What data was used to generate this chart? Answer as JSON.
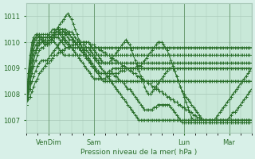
{
  "title": "",
  "xlabel": "Pression niveau de la mer( hPa )",
  "ylabel": "",
  "bg_color": "#d8f0e8",
  "plot_bg_color": "#c8e8d8",
  "line_color": "#2a6e2a",
  "grid_color": "#a8c8b8",
  "tick_label_color": "#2a6e2a",
  "ylim": [
    1006.5,
    1011.5
  ],
  "xlim": [
    0,
    120
  ],
  "yticks": [
    1007,
    1008,
    1009,
    1010,
    1011
  ],
  "xtick_labels": [
    "VenDim",
    "Sam",
    "Lun",
    "Mar"
  ],
  "xtick_positions": [
    12,
    36,
    84,
    108
  ],
  "num_steps": 121,
  "series": [
    [
      1007.6,
      1007.8,
      1007.9,
      1008.1,
      1008.3,
      1008.5,
      1008.6,
      1008.8,
      1008.9,
      1009.0,
      1009.1,
      1009.2,
      1009.2,
      1009.3,
      1009.4,
      1009.5,
      1009.5,
      1009.6,
      1009.6,
      1009.7,
      1009.7,
      1009.8,
      1009.8,
      1009.8,
      1009.9,
      1009.9,
      1009.9,
      1010.0,
      1010.0,
      1010.0,
      1010.0,
      1010.0,
      1010.0,
      1010.0,
      1009.9,
      1009.9,
      1009.9,
      1009.8,
      1009.8,
      1009.7,
      1009.7,
      1009.6,
      1009.6,
      1009.5,
      1009.5,
      1009.4,
      1009.4,
      1009.3,
      1009.3,
      1009.2,
      1009.2,
      1009.1,
      1009.1,
      1009.0,
      1009.0,
      1008.9,
      1008.9,
      1008.8,
      1008.8,
      1008.7,
      1008.7,
      1008.6,
      1008.6,
      1008.5,
      1008.5,
      1008.4,
      1008.4,
      1008.3,
      1008.3,
      1008.2,
      1008.2,
      1008.1,
      1008.1,
      1008.0,
      1008.0,
      1007.9,
      1007.9,
      1007.8,
      1007.8,
      1007.7,
      1007.7,
      1007.6,
      1007.6,
      1007.5,
      1007.5,
      1007.4,
      1007.4,
      1007.3,
      1007.3,
      1007.2,
      1007.2,
      1007.1,
      1007.1,
      1007.0,
      1007.0,
      1007.0,
      1007.0,
      1007.0,
      1007.0,
      1007.0,
      1007.0,
      1007.0,
      1007.0,
      1007.0,
      1007.0,
      1007.0,
      1007.0,
      1007.0,
      1007.1,
      1007.2,
      1007.3,
      1007.3,
      1007.4,
      1007.5,
      1007.6,
      1007.7,
      1007.8,
      1007.9,
      1008.0,
      1008.1,
      1008.2,
      1008.3,
      1008.4,
      1008.5,
      1008.6,
      1008.7
    ],
    [
      1007.6,
      1007.9,
      1008.2,
      1008.5,
      1008.7,
      1008.9,
      1009.1,
      1009.2,
      1009.3,
      1009.3,
      1009.3,
      1009.3,
      1009.4,
      1009.5,
      1009.6,
      1009.7,
      1009.8,
      1009.9,
      1010.0,
      1010.1,
      1010.2,
      1010.3,
      1010.4,
      1010.4,
      1010.4,
      1010.3,
      1010.2,
      1010.1,
      1010.0,
      1009.9,
      1009.8,
      1009.7,
      1009.7,
      1009.6,
      1009.5,
      1009.5,
      1009.4,
      1009.3,
      1009.2,
      1009.1,
      1009.0,
      1008.9,
      1008.8,
      1008.7,
      1008.6,
      1008.5,
      1008.4,
      1008.3,
      1008.2,
      1008.1,
      1008.0,
      1007.9,
      1007.8,
      1007.7,
      1007.6,
      1007.5,
      1007.4,
      1007.3,
      1007.2,
      1007.1,
      1007.0,
      1007.0,
      1007.0,
      1007.0,
      1007.0,
      1007.0,
      1007.0,
      1007.0,
      1007.0,
      1007.0,
      1007.0,
      1007.0,
      1007.0,
      1007.0,
      1007.0,
      1007.0,
      1007.0,
      1007.0,
      1007.0,
      1007.0,
      1007.0,
      1007.0,
      1007.0,
      1007.0,
      1007.0,
      1007.0,
      1007.0,
      1007.0,
      1007.0,
      1007.0,
      1007.0,
      1007.0,
      1007.0,
      1007.0,
      1007.0,
      1007.0,
      1007.0,
      1007.0,
      1007.0,
      1007.0,
      1007.0,
      1007.0,
      1007.0,
      1007.0,
      1007.0,
      1007.0,
      1007.0,
      1007.0,
      1007.0,
      1007.0,
      1007.0,
      1007.0,
      1007.0,
      1007.0,
      1007.0,
      1007.0,
      1007.0,
      1007.0,
      1007.0,
      1007.0,
      1007.0
    ],
    [
      1007.6,
      1008.0,
      1008.4,
      1008.8,
      1009.1,
      1009.3,
      1009.5,
      1009.7,
      1009.8,
      1009.8,
      1009.9,
      1009.9,
      1010.0,
      1010.1,
      1010.2,
      1010.3,
      1010.4,
      1010.6,
      1010.7,
      1010.8,
      1010.9,
      1011.0,
      1011.1,
      1011.0,
      1010.9,
      1010.7,
      1010.5,
      1010.3,
      1010.1,
      1009.9,
      1009.7,
      1009.6,
      1009.5,
      1009.4,
      1009.3,
      1009.2,
      1009.1,
      1009.0,
      1008.9,
      1008.8,
      1008.8,
      1008.8,
      1008.8,
      1008.8,
      1008.8,
      1008.8,
      1008.8,
      1008.7,
      1008.7,
      1008.6,
      1008.5,
      1008.5,
      1008.4,
      1008.3,
      1008.2,
      1008.2,
      1008.1,
      1008.0,
      1007.9,
      1007.8,
      1007.7,
      1007.6,
      1007.5,
      1007.4,
      1007.4,
      1007.4,
      1007.4,
      1007.4,
      1007.5,
      1007.5,
      1007.6,
      1007.6,
      1007.6,
      1007.6,
      1007.6,
      1007.6,
      1007.6,
      1007.5,
      1007.4,
      1007.3,
      1007.2,
      1007.1,
      1007.0,
      1006.9,
      1006.9,
      1006.9,
      1006.9,
      1006.9,
      1006.9,
      1006.9,
      1006.9,
      1006.9,
      1006.9,
      1006.9,
      1006.9,
      1006.9,
      1006.9,
      1006.9,
      1006.9,
      1006.9,
      1006.9,
      1006.9,
      1006.9,
      1006.9,
      1006.9,
      1006.9,
      1006.9,
      1006.9,
      1006.9,
      1006.9,
      1006.9,
      1006.9,
      1006.9,
      1006.9,
      1006.9,
      1006.9,
      1006.9,
      1006.9,
      1006.9,
      1006.9,
      1006.9
    ],
    [
      1007.6,
      1008.1,
      1008.5,
      1009.0,
      1009.3,
      1009.6,
      1009.8,
      1009.9,
      1010.0,
      1010.0,
      1010.1,
      1010.2,
      1010.3,
      1010.4,
      1010.5,
      1010.5,
      1010.5,
      1010.5,
      1010.4,
      1010.3,
      1010.2,
      1010.1,
      1010.0,
      1009.9,
      1009.8,
      1009.7,
      1009.6,
      1009.5,
      1009.4,
      1009.3,
      1009.2,
      1009.1,
      1009.0,
      1008.9,
      1008.8,
      1008.7,
      1008.6,
      1008.6,
      1008.6,
      1008.6,
      1008.6,
      1008.6,
      1008.6,
      1008.7,
      1008.7,
      1008.8,
      1008.8,
      1008.8,
      1008.8,
      1008.8,
      1008.9,
      1008.9,
      1008.9,
      1009.0,
      1009.0,
      1009.0,
      1009.0,
      1009.0,
      1009.0,
      1009.1,
      1009.1,
      1009.1,
      1009.2,
      1009.3,
      1009.4,
      1009.5,
      1009.6,
      1009.7,
      1009.8,
      1009.9,
      1010.0,
      1010.0,
      1010.0,
      1009.9,
      1009.8,
      1009.7,
      1009.5,
      1009.3,
      1009.1,
      1008.9,
      1008.7,
      1008.5,
      1008.3,
      1008.1,
      1007.9,
      1007.7,
      1007.5,
      1007.3,
      1007.1,
      1007.0,
      1007.0,
      1007.0,
      1007.0,
      1007.0,
      1007.0,
      1007.0,
      1007.0,
      1007.0,
      1007.0,
      1007.0,
      1007.0,
      1007.0,
      1007.0,
      1007.0,
      1007.0,
      1007.0,
      1007.0,
      1007.0,
      1007.0,
      1007.0,
      1007.0,
      1007.0,
      1007.0,
      1007.0,
      1007.0,
      1007.0,
      1007.0,
      1007.0,
      1007.0,
      1007.0,
      1007.0
    ],
    [
      1007.6,
      1008.2,
      1008.7,
      1009.1,
      1009.5,
      1009.7,
      1009.9,
      1010.0,
      1010.0,
      1010.0,
      1010.0,
      1010.0,
      1010.1,
      1010.2,
      1010.3,
      1010.4,
      1010.5,
      1010.5,
      1010.5,
      1010.5,
      1010.4,
      1010.3,
      1010.2,
      1010.1,
      1010.1,
      1010.0,
      1010.0,
      1010.0,
      1010.0,
      1010.0,
      1010.0,
      1010.0,
      1010.0,
      1010.0,
      1009.9,
      1009.8,
      1009.7,
      1009.6,
      1009.5,
      1009.4,
      1009.3,
      1009.2,
      1009.2,
      1009.2,
      1009.2,
      1009.2,
      1009.2,
      1009.2,
      1009.2,
      1009.2,
      1009.2,
      1009.2,
      1009.2,
      1009.2,
      1009.2,
      1009.2,
      1009.2,
      1009.2,
      1009.2,
      1009.2,
      1009.2,
      1009.2,
      1009.2,
      1009.2,
      1009.2,
      1009.2,
      1009.2,
      1009.2,
      1009.2,
      1009.2,
      1009.2,
      1009.2,
      1009.2,
      1009.2,
      1009.2,
      1009.2,
      1009.2,
      1009.2,
      1009.2,
      1009.2,
      1009.2,
      1009.2,
      1009.2,
      1009.2,
      1009.2,
      1009.2,
      1009.2,
      1009.2,
      1009.2,
      1009.2,
      1009.2,
      1009.2,
      1009.2,
      1009.2,
      1009.2,
      1009.2,
      1009.2,
      1009.2,
      1009.2,
      1009.2,
      1009.2,
      1009.2,
      1009.2,
      1009.2,
      1009.2,
      1009.2,
      1009.2,
      1009.2,
      1009.2,
      1009.2,
      1009.2,
      1009.2,
      1009.2,
      1009.2,
      1009.2,
      1009.2,
      1009.2,
      1009.2,
      1009.2,
      1009.2,
      1009.2
    ],
    [
      1007.6,
      1008.3,
      1008.9,
      1009.3,
      1009.7,
      1009.9,
      1010.0,
      1010.1,
      1010.1,
      1010.0,
      1009.9,
      1009.9,
      1009.9,
      1010.0,
      1010.1,
      1010.2,
      1010.3,
      1010.3,
      1010.4,
      1010.4,
      1010.4,
      1010.4,
      1010.3,
      1010.3,
      1010.2,
      1010.1,
      1010.0,
      1009.9,
      1009.8,
      1009.7,
      1009.6,
      1009.5,
      1009.4,
      1009.3,
      1009.2,
      1009.1,
      1009.0,
      1008.9,
      1008.8,
      1008.8,
      1008.8,
      1008.8,
      1008.8,
      1008.8,
      1008.9,
      1008.9,
      1009.0,
      1009.0,
      1009.0,
      1009.0,
      1009.0,
      1009.0,
      1009.0,
      1009.0,
      1009.0,
      1009.0,
      1009.0,
      1009.0,
      1009.0,
      1009.0,
      1009.0,
      1009.0,
      1009.0,
      1009.0,
      1009.0,
      1009.0,
      1009.0,
      1009.0,
      1009.0,
      1009.0,
      1009.0,
      1009.0,
      1009.0,
      1009.0,
      1009.0,
      1009.0,
      1009.0,
      1009.0,
      1009.0,
      1009.0,
      1009.0,
      1009.0,
      1009.0,
      1009.0,
      1009.0,
      1009.0,
      1009.0,
      1009.0,
      1009.0,
      1009.0,
      1009.0,
      1009.0,
      1009.0,
      1009.0,
      1009.0,
      1009.0,
      1009.0,
      1009.0,
      1009.0,
      1009.0,
      1009.0,
      1009.0,
      1009.0,
      1009.0,
      1009.0,
      1009.0,
      1009.0,
      1009.0,
      1009.0,
      1009.0,
      1009.0,
      1009.0,
      1009.0,
      1009.0,
      1009.0,
      1009.0,
      1009.0,
      1009.0,
      1009.0,
      1009.0,
      1009.0
    ],
    [
      1007.6,
      1008.4,
      1009.0,
      1009.5,
      1009.9,
      1010.1,
      1010.2,
      1010.2,
      1010.2,
      1010.2,
      1010.2,
      1010.2,
      1010.2,
      1010.2,
      1010.2,
      1010.2,
      1010.2,
      1010.2,
      1010.1,
      1010.0,
      1009.9,
      1009.8,
      1009.8,
      1009.8,
      1009.8,
      1009.9,
      1009.9,
      1009.9,
      1009.9,
      1009.9,
      1009.9,
      1009.9,
      1009.8,
      1009.8,
      1009.7,
      1009.6,
      1009.5,
      1009.4,
      1009.3,
      1009.2,
      1009.2,
      1009.2,
      1009.2,
      1009.2,
      1009.2,
      1009.3,
      1009.4,
      1009.5,
      1009.6,
      1009.7,
      1009.8,
      1009.9,
      1010.0,
      1010.1,
      1010.0,
      1009.9,
      1009.7,
      1009.5,
      1009.3,
      1009.1,
      1008.9,
      1008.7,
      1008.5,
      1008.3,
      1008.1,
      1008.0,
      1008.0,
      1008.1,
      1008.2,
      1008.3,
      1008.4,
      1008.5,
      1008.6,
      1008.7,
      1008.8,
      1008.9,
      1009.0,
      1009.0,
      1009.0,
      1008.9,
      1008.7,
      1008.5,
      1008.3,
      1008.1,
      1008.0,
      1007.9,
      1007.8,
      1007.7,
      1007.6,
      1007.5,
      1007.4,
      1007.3,
      1007.2,
      1007.1,
      1007.0,
      1007.0,
      1007.0,
      1007.0,
      1007.0,
      1007.0,
      1007.0,
      1007.1,
      1007.2,
      1007.3,
      1007.4,
      1007.5,
      1007.6,
      1007.7,
      1007.8,
      1007.9,
      1008.0,
      1008.1,
      1008.2,
      1008.3,
      1008.4,
      1008.5,
      1008.6,
      1008.7,
      1008.8,
      1008.9,
      1009.0
    ],
    [
      1007.6,
      1008.5,
      1009.2,
      1009.7,
      1010.0,
      1010.2,
      1010.3,
      1010.3,
      1010.3,
      1010.3,
      1010.3,
      1010.3,
      1010.3,
      1010.2,
      1010.1,
      1010.0,
      1009.9,
      1009.8,
      1009.7,
      1009.6,
      1009.5,
      1009.5,
      1009.5,
      1009.5,
      1009.5,
      1009.5,
      1009.5,
      1009.5,
      1009.5,
      1009.5,
      1009.5,
      1009.5,
      1009.5,
      1009.5,
      1009.5,
      1009.5,
      1009.5,
      1009.5,
      1009.5,
      1009.5,
      1009.5,
      1009.5,
      1009.5,
      1009.5,
      1009.5,
      1009.5,
      1009.5,
      1009.5,
      1009.5,
      1009.5,
      1009.5,
      1009.5,
      1009.5,
      1009.5,
      1009.5,
      1009.5,
      1009.5,
      1009.5,
      1009.5,
      1009.5,
      1009.5,
      1009.5,
      1009.5,
      1009.5,
      1009.5,
      1009.5,
      1009.5,
      1009.5,
      1009.5,
      1009.5,
      1009.5,
      1009.5,
      1009.5,
      1009.5,
      1009.5,
      1009.5,
      1009.5,
      1009.5,
      1009.5,
      1009.5,
      1009.5,
      1009.5,
      1009.5,
      1009.5,
      1009.5,
      1009.5,
      1009.5,
      1009.5,
      1009.5,
      1009.5,
      1009.5,
      1009.5,
      1009.5,
      1009.5,
      1009.5,
      1009.5,
      1009.5,
      1009.5,
      1009.5,
      1009.5,
      1009.5,
      1009.5,
      1009.5,
      1009.5,
      1009.5,
      1009.5,
      1009.5,
      1009.5,
      1009.5,
      1009.5,
      1009.5,
      1009.5,
      1009.5,
      1009.5,
      1009.5,
      1009.5,
      1009.5,
      1009.5,
      1009.5,
      1009.5,
      1009.5
    ],
    [
      1007.6,
      1008.6,
      1009.3,
      1009.8,
      1010.1,
      1010.2,
      1010.3,
      1010.3,
      1010.2,
      1010.1,
      1010.0,
      1009.9,
      1010.0,
      1010.1,
      1010.2,
      1010.3,
      1010.4,
      1010.4,
      1010.5,
      1010.5,
      1010.5,
      1010.5,
      1010.4,
      1010.3,
      1010.2,
      1010.1,
      1010.0,
      1009.9,
      1009.8,
      1009.7,
      1009.6,
      1009.5,
      1009.4,
      1009.3,
      1009.2,
      1009.1,
      1009.0,
      1008.9,
      1008.8,
      1008.7,
      1008.6,
      1008.5,
      1008.5,
      1008.5,
      1008.5,
      1008.5,
      1008.5,
      1008.5,
      1008.5,
      1008.5,
      1008.5,
      1008.5,
      1008.5,
      1008.5,
      1008.5,
      1008.5,
      1008.5,
      1008.5,
      1008.5,
      1008.5,
      1008.5,
      1008.5,
      1008.5,
      1008.5,
      1008.5,
      1008.5,
      1008.5,
      1008.5,
      1008.5,
      1008.5,
      1008.5,
      1008.5,
      1008.5,
      1008.5,
      1008.5,
      1008.5,
      1008.5,
      1008.5,
      1008.5,
      1008.5,
      1008.5,
      1008.5,
      1008.5,
      1008.5,
      1008.5,
      1008.5,
      1008.5,
      1008.5,
      1008.5,
      1008.5,
      1008.5,
      1008.5,
      1008.5,
      1008.5,
      1008.5,
      1008.5,
      1008.5,
      1008.5,
      1008.5,
      1008.5,
      1008.5,
      1008.5,
      1008.5,
      1008.5,
      1008.5,
      1008.5,
      1008.5,
      1008.5,
      1008.5,
      1008.5,
      1008.5,
      1008.5,
      1008.5,
      1008.5,
      1008.5,
      1008.5,
      1008.5,
      1008.5,
      1008.5,
      1008.5,
      1008.5
    ],
    [
      1007.6,
      1008.8,
      1009.5,
      1010.0,
      1010.2,
      1010.3,
      1010.3,
      1010.2,
      1010.1,
      1010.0,
      1009.9,
      1010.0,
      1010.1,
      1010.2,
      1010.3,
      1010.4,
      1010.4,
      1010.4,
      1010.3,
      1010.2,
      1010.1,
      1010.0,
      1009.9,
      1009.8,
      1009.8,
      1009.8,
      1009.8,
      1009.8,
      1009.8,
      1009.8,
      1009.8,
      1009.8,
      1009.8,
      1009.8,
      1009.8,
      1009.8,
      1009.8,
      1009.8,
      1009.8,
      1009.8,
      1009.8,
      1009.8,
      1009.8,
      1009.8,
      1009.8,
      1009.8,
      1009.8,
      1009.8,
      1009.8,
      1009.8,
      1009.8,
      1009.8,
      1009.8,
      1009.8,
      1009.8,
      1009.8,
      1009.8,
      1009.8,
      1009.8,
      1009.8,
      1009.8,
      1009.8,
      1009.8,
      1009.8,
      1009.8,
      1009.8,
      1009.8,
      1009.8,
      1009.8,
      1009.8,
      1009.8,
      1009.8,
      1009.8,
      1009.8,
      1009.8,
      1009.8,
      1009.8,
      1009.8,
      1009.8,
      1009.8,
      1009.8,
      1009.8,
      1009.8,
      1009.8,
      1009.8,
      1009.8,
      1009.8,
      1009.8,
      1009.8,
      1009.8,
      1009.8,
      1009.8,
      1009.8,
      1009.8,
      1009.8,
      1009.8,
      1009.8,
      1009.8,
      1009.8,
      1009.8,
      1009.8,
      1009.8,
      1009.8,
      1009.8,
      1009.8,
      1009.8,
      1009.8,
      1009.8,
      1009.8,
      1009.8,
      1009.8,
      1009.8,
      1009.8,
      1009.8,
      1009.8,
      1009.8,
      1009.8,
      1009.8,
      1009.8,
      1009.8,
      1009.8
    ]
  ]
}
